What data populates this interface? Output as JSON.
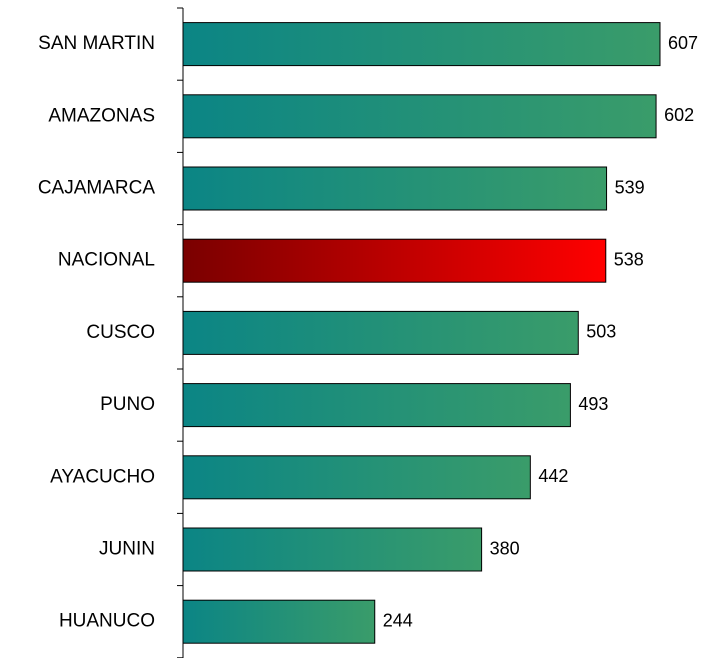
{
  "chart_data": {
    "type": "barh",
    "categories": [
      "SAN MARTIN",
      "AMAZONAS",
      "CAJAMARCA",
      "NACIONAL",
      "CUSCO",
      "PUNO",
      "AYACUCHO",
      "JUNIN",
      "HUANUCO"
    ],
    "values": [
      607,
      602,
      539,
      538,
      503,
      493,
      442,
      380,
      244
    ],
    "colors": [
      [
        "#0b8585",
        "#3a9c6a"
      ],
      [
        "#0b8585",
        "#3a9c6a"
      ],
      [
        "#0b8585",
        "#3a9c6a"
      ],
      [
        "#7a0000",
        "#ff0000"
      ],
      [
        "#0b8585",
        "#3a9c6a"
      ],
      [
        "#0b8585",
        "#3a9c6a"
      ],
      [
        "#0b8585",
        "#3a9c6a"
      ],
      [
        "#0b8585",
        "#3a9c6a"
      ],
      [
        "#0b8585",
        "#3a9c6a"
      ]
    ]
  }
}
